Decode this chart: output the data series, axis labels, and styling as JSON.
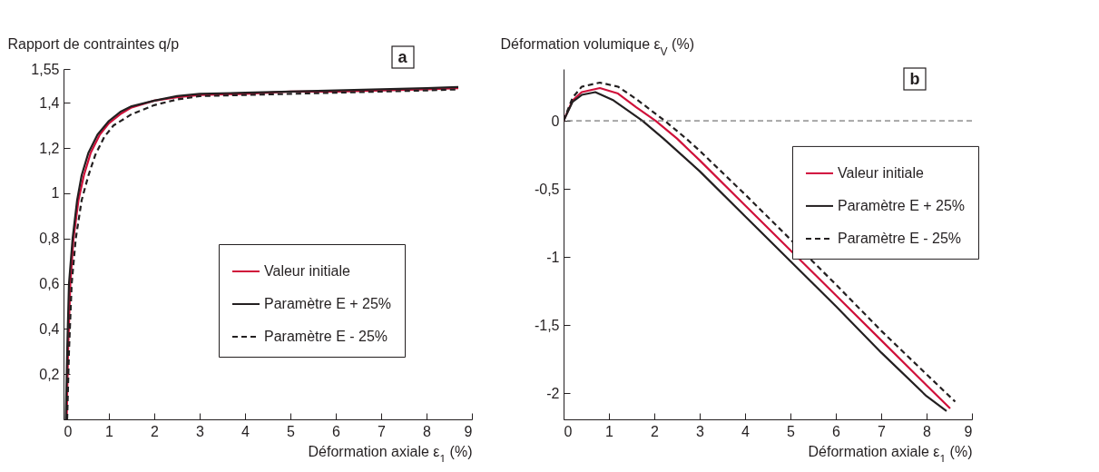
{
  "chart_data": [
    {
      "type": "line",
      "xlabel": "Déformation axiale ε$_{1}$ (%)",
      "ylabel": "Rapport de contraintes q/p",
      "annotations": [
        "a"
      ],
      "xlim": [
        0,
        9
      ],
      "ylim": [
        0,
        1.55
      ],
      "xticks": [
        0,
        1,
        2,
        3,
        4,
        5,
        6,
        7,
        8,
        9
      ],
      "yticks": [
        {
          "value": 0.2,
          "label": "0,2"
        },
        {
          "value": 0.4,
          "label": "0,4"
        },
        {
          "value": 0.6,
          "label": "0,6"
        },
        {
          "value": 0.8,
          "label": "0,8"
        },
        1,
        {
          "value": 1.2,
          "label": "1,2"
        },
        {
          "value": 1.4,
          "label": "1,4"
        },
        {
          "value": 1.55,
          "label": "1,55"
        }
      ],
      "grid": false,
      "legend": "right",
      "series": [
        {
          "name": "Valeur initiale",
          "color": "#d0103a",
          "line_style": "solid",
          "x": [
            0.07,
            0.1,
            0.15,
            0.22,
            0.33,
            0.45,
            0.6,
            0.8,
            1,
            1.25,
            1.5,
            2,
            2.5,
            3,
            4,
            5,
            6,
            7,
            8,
            8.7
          ],
          "values": [
            0,
            0.3,
            0.6,
            0.8,
            0.97,
            1.08,
            1.18,
            1.26,
            1.31,
            1.35,
            1.38,
            1.41,
            1.425,
            1.435,
            1.44,
            1.45,
            1.45,
            1.455,
            1.46,
            1.465
          ]
        },
        {
          "name": "Paramètre E + 25%",
          "color": "#231f20",
          "line_style": "solid",
          "x": [
            0.05,
            0.08,
            0.12,
            0.2,
            0.3,
            0.4,
            0.55,
            0.75,
            1,
            1.25,
            1.5,
            2,
            2.5,
            3,
            4,
            5,
            6,
            7,
            8,
            8.7
          ],
          "values": [
            0,
            0.3,
            0.6,
            0.8,
            0.97,
            1.08,
            1.18,
            1.26,
            1.32,
            1.36,
            1.385,
            1.41,
            1.43,
            1.44,
            1.445,
            1.45,
            1.455,
            1.46,
            1.465,
            1.47
          ]
        },
        {
          "name": "Paramètre E - 25%",
          "color": "#231f20",
          "line_style": "dashed",
          "x": [
            0.08,
            0.12,
            0.18,
            0.27,
            0.4,
            0.55,
            0.7,
            0.9,
            1.1,
            1.5,
            2,
            2.5,
            3,
            4,
            5,
            6,
            7,
            8,
            8.7
          ],
          "values": [
            0,
            0.3,
            0.6,
            0.8,
            0.97,
            1.08,
            1.17,
            1.25,
            1.3,
            1.35,
            1.39,
            1.415,
            1.43,
            1.435,
            1.44,
            1.445,
            1.45,
            1.455,
            1.46
          ]
        }
      ]
    },
    {
      "type": "line",
      "xlabel": "Déformation axiale ε$_{1}$ (%)",
      "ylabel": "Déformation volumique ε$_{V}$ (%)",
      "annotations": [
        "b"
      ],
      "xlim": [
        0,
        9
      ],
      "ylim": [
        -2.19,
        0.38
      ],
      "xticks": [
        0,
        1,
        2,
        3,
        4,
        5,
        6,
        7,
        8,
        9
      ],
      "yticks": [
        {
          "value": -2,
          "label": "-2"
        },
        {
          "value": -1.5,
          "label": "-1,5"
        },
        {
          "value": -1,
          "label": "-1"
        },
        {
          "value": -0.5,
          "label": "-0,5"
        },
        0
      ],
      "grid": false,
      "legend": "top right",
      "ref_lines": [
        {
          "axis": "y",
          "value": 0,
          "color": "#555555",
          "line_style": "dashed"
        }
      ],
      "series": [
        {
          "name": "Valeur initiale",
          "color": "#d0103a",
          "line_style": "solid",
          "x": [
            0,
            0.2,
            0.4,
            0.8,
            1.2,
            1.6,
            2.03,
            2.5,
            3,
            4,
            5,
            6,
            7,
            8,
            8.52
          ],
          "values": [
            0,
            0.15,
            0.21,
            0.24,
            0.2,
            0.1,
            0,
            -0.13,
            -0.29,
            -0.62,
            -0.95,
            -1.28,
            -1.61,
            -1.94,
            -2.11
          ]
        },
        {
          "name": "Paramètre E + 25%",
          "color": "#231f20",
          "line_style": "solid",
          "x": [
            0,
            0.2,
            0.4,
            0.7,
            1.1,
            1.4,
            1.74,
            2.2,
            3,
            4,
            5,
            6,
            7,
            8,
            8.44
          ],
          "values": [
            0,
            0.14,
            0.19,
            0.21,
            0.15,
            0.08,
            0,
            -0.13,
            -0.37,
            -0.7,
            -1.03,
            -1.36,
            -1.7,
            -2.02,
            -2.13
          ]
        },
        {
          "name": "Paramètre E - 25%",
          "color": "#231f20",
          "line_style": "dashed",
          "x": [
            0,
            0.2,
            0.4,
            0.8,
            1.2,
            1.6,
            2.23,
            2.7,
            3,
            4,
            5,
            6,
            7,
            8,
            8.63
          ],
          "values": [
            0,
            0.17,
            0.25,
            0.28,
            0.25,
            0.16,
            0,
            -0.13,
            -0.22,
            -0.54,
            -0.87,
            -1.2,
            -1.54,
            -1.86,
            -2.06
          ]
        }
      ]
    }
  ]
}
